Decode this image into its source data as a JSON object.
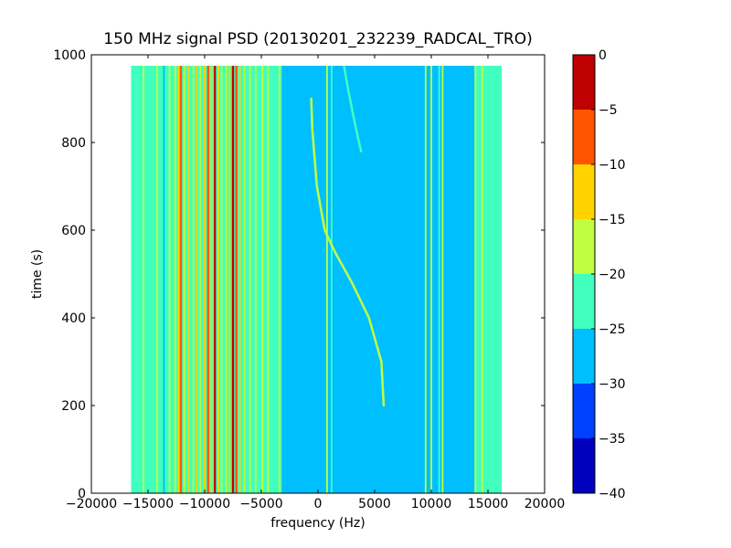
{
  "chart_data": {
    "type": "heatmap",
    "title": "150 MHz signal PSD (20130201_232239_RADCAL_TRO)",
    "xlabel": "frequency (Hz)",
    "ylabel": "time (s)",
    "xlim": [
      -20000,
      20000
    ],
    "ylim": [
      0,
      1000
    ],
    "xticks": [
      -20000,
      -15000,
      -10000,
      -5000,
      0,
      5000,
      10000,
      15000,
      20000
    ],
    "xtick_labels": [
      "−20000",
      "−15000",
      "−10000",
      "−5000",
      "0",
      "5000",
      "10000",
      "15000",
      "20000"
    ],
    "yticks": [
      0,
      200,
      400,
      600,
      800,
      1000
    ],
    "ytick_labels": [
      "0",
      "200",
      "400",
      "600",
      "800",
      "1000"
    ],
    "data_extent": {
      "x": [
        -16500,
        16200
      ],
      "y": [
        0,
        975
      ]
    },
    "background_value": -27.5,
    "colorbar": {
      "levels": [
        -40,
        -35,
        -30,
        -25,
        -20,
        -15,
        -10,
        -5,
        0
      ],
      "tick_labels": [
        "−40",
        "−35",
        "−30",
        "−25",
        "−20",
        "−15",
        "−10",
        "−5",
        "0"
      ],
      "colors": [
        "#0000bf",
        "#0040ff",
        "#00bfff",
        "#40ffbf",
        "#bfff40",
        "#ffd200",
        "#ff5500",
        "#bf0000"
      ]
    },
    "band_regions": [
      {
        "x": [
          -16500,
          -13500
        ],
        "value": -22.5
      },
      {
        "x": [
          -13500,
          -3200
        ],
        "value": -22.5
      },
      {
        "x": [
          13800,
          16200
        ],
        "value": -22.5
      }
    ],
    "vertical_lines": [
      {
        "freq": -16000,
        "value": -22.5
      },
      {
        "freq": -15400,
        "value": -17.5
      },
      {
        "freq": -14800,
        "value": -22.5
      },
      {
        "freq": -14200,
        "value": -17.5
      },
      {
        "freq": -13600,
        "value": -27.5
      },
      {
        "freq": -13100,
        "value": -17.5
      },
      {
        "freq": -12600,
        "value": -17.5
      },
      {
        "freq": -12300,
        "value": -12.5
      },
      {
        "freq": -12100,
        "value": -7.5
      },
      {
        "freq": -11800,
        "value": -17.5
      },
      {
        "freq": -11400,
        "value": -12.5
      },
      {
        "freq": -11000,
        "value": -17.5
      },
      {
        "freq": -10700,
        "value": -12.5
      },
      {
        "freq": -10400,
        "value": -17.5
      },
      {
        "freq": -10000,
        "value": -12.5
      },
      {
        "freq": -9700,
        "value": -7.5
      },
      {
        "freq": -9400,
        "value": -12.5
      },
      {
        "freq": -9100,
        "value": -2.5
      },
      {
        "freq": -8800,
        "value": -12.5
      },
      {
        "freq": -8500,
        "value": -17.5
      },
      {
        "freq": -8100,
        "value": -17.5
      },
      {
        "freq": -7800,
        "value": -12.5
      },
      {
        "freq": -7500,
        "value": -2.5
      },
      {
        "freq": -7200,
        "value": -7.5
      },
      {
        "freq": -6900,
        "value": -12.5
      },
      {
        "freq": -6500,
        "value": -17.5
      },
      {
        "freq": -6000,
        "value": -17.5
      },
      {
        "freq": -5500,
        "value": -17.5
      },
      {
        "freq": -4900,
        "value": -17.5
      },
      {
        "freq": -4400,
        "value": -17.5
      },
      {
        "freq": -3800,
        "value": -22.5
      },
      {
        "freq": -3400,
        "value": -17.5
      },
      {
        "freq": 800,
        "value": -17.5
      },
      {
        "freq": 1200,
        "value": -22.5
      },
      {
        "freq": 9500,
        "value": -17.5
      },
      {
        "freq": 10000,
        "value": -17.5
      },
      {
        "freq": 10700,
        "value": -22.5
      },
      {
        "freq": 11000,
        "value": -17.5
      },
      {
        "freq": 13900,
        "value": -17.5
      },
      {
        "freq": 14500,
        "value": -17.5
      },
      {
        "freq": 15000,
        "value": -22.5
      }
    ],
    "traces": [
      {
        "name": "",
        "value": -17.5,
        "points": [
          [
            5800,
            200
          ],
          [
            5600,
            300
          ],
          [
            4500,
            400
          ],
          [
            3000,
            480
          ],
          [
            1500,
            550
          ],
          [
            600,
            600
          ],
          [
            -100,
            700
          ],
          [
            -500,
            830
          ],
          [
            -600,
            900
          ]
        ]
      },
      {
        "name": "",
        "value": -22.5,
        "points": [
          [
            3800,
            780
          ],
          [
            3200,
            850
          ],
          [
            2600,
            930
          ],
          [
            2300,
            975
          ]
        ]
      }
    ]
  }
}
